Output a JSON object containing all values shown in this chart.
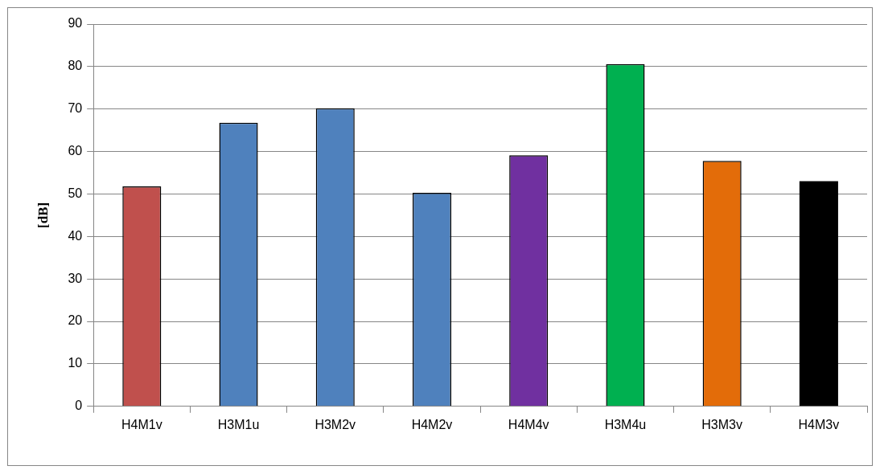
{
  "chart_data": {
    "type": "bar",
    "ylabel": "[dB]",
    "categories": [
      "H4M1v",
      "H3M1u",
      "H3M2v",
      "H4M2v",
      "H4M4v",
      "H3M4u",
      "H3M3v",
      "H4M3v"
    ],
    "values": [
      51.8,
      66.8,
      70.2,
      50.3,
      59.1,
      80.6,
      57.8,
      53.0
    ],
    "colors": [
      "#c0504d",
      "#4f81bd",
      "#4f81bd",
      "#4f81bd",
      "#7030a0",
      "#00b050",
      "#e36c09",
      "#000000"
    ],
    "ylim": [
      0,
      90
    ],
    "yticks": [
      0,
      10,
      20,
      30,
      40,
      50,
      60,
      70,
      80,
      90
    ],
    "grid": "y",
    "legend": false
  }
}
